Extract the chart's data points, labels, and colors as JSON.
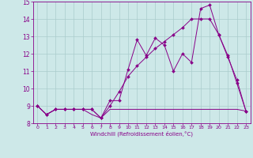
{
  "xlabel": "Windchill (Refroidissement éolien,°C)",
  "xlim": [
    -0.5,
    23.5
  ],
  "ylim": [
    8,
    15
  ],
  "yticks": [
    8,
    9,
    10,
    11,
    12,
    13,
    14,
    15
  ],
  "xticks": [
    0,
    1,
    2,
    3,
    4,
    5,
    6,
    7,
    8,
    9,
    10,
    11,
    12,
    13,
    14,
    15,
    16,
    17,
    18,
    19,
    20,
    21,
    22,
    23
  ],
  "bg_color": "#cde8e8",
  "line_color": "#880088",
  "grid_color": "#aacccc",
  "line1_x": [
    0,
    1,
    2,
    3,
    4,
    5,
    6,
    7,
    8,
    9,
    10,
    11,
    12,
    13,
    14,
    15,
    16,
    17,
    18,
    19,
    20,
    21,
    22,
    23
  ],
  "line1_y": [
    9,
    8.5,
    8.8,
    8.8,
    8.8,
    8.8,
    8.8,
    8.3,
    9.3,
    9.3,
    11.1,
    12.8,
    11.9,
    12.9,
    12.5,
    11.0,
    12.0,
    11.5,
    14.6,
    14.8,
    13.1,
    11.8,
    10.5,
    8.7
  ],
  "line2_x": [
    0,
    1,
    2,
    3,
    4,
    5,
    6,
    7,
    8,
    9,
    10,
    11,
    12,
    13,
    14,
    15,
    16,
    17,
    18,
    19,
    20,
    21,
    22,
    23
  ],
  "line2_y": [
    9,
    8.5,
    8.8,
    8.8,
    8.8,
    8.8,
    8.5,
    8.3,
    8.8,
    8.8,
    8.8,
    8.8,
    8.8,
    8.8,
    8.8,
    8.8,
    8.8,
    8.8,
    8.8,
    8.8,
    8.8,
    8.8,
    8.8,
    8.7
  ],
  "line3_x": [
    0,
    1,
    2,
    3,
    4,
    5,
    6,
    7,
    8,
    9,
    10,
    11,
    12,
    13,
    14,
    15,
    16,
    17,
    18,
    19,
    20,
    21,
    22,
    23
  ],
  "line3_y": [
    9,
    8.5,
    8.8,
    8.8,
    8.8,
    8.8,
    8.8,
    8.3,
    9.0,
    9.8,
    10.7,
    11.3,
    11.8,
    12.3,
    12.7,
    13.1,
    13.5,
    14.0,
    14.0,
    14.0,
    13.1,
    11.9,
    10.3,
    8.7
  ]
}
